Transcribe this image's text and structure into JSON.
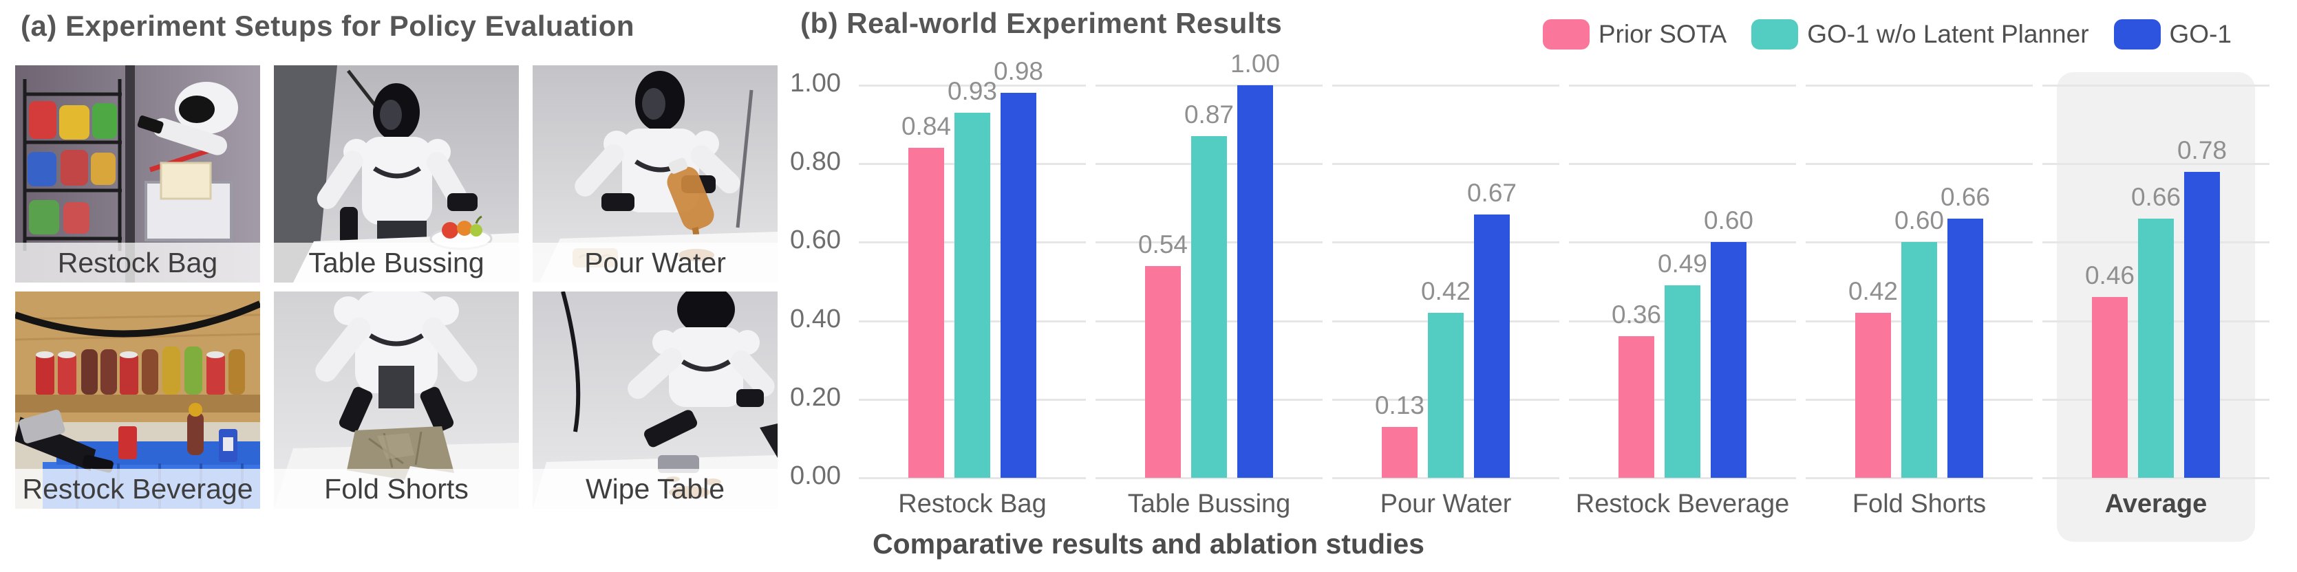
{
  "panel_a": {
    "title": "(a) Experiment Setups for Policy Evaluation",
    "setups": [
      {
        "label": "Restock Bag",
        "scene": "restock-bag"
      },
      {
        "label": "Table Bussing",
        "scene": "table-bussing"
      },
      {
        "label": "Pour Water",
        "scene": "pour-water"
      },
      {
        "label": "Restock Beverage",
        "scene": "restock-beverage"
      },
      {
        "label": "Fold Shorts",
        "scene": "fold-shorts"
      },
      {
        "label": "Wipe Table",
        "scene": "wipe-table"
      }
    ]
  },
  "panel_b": {
    "title": "(b) Real-world Experiment Results",
    "caption": "Comparative results and ablation studies"
  },
  "chart_data": {
    "type": "bar",
    "title": "(b) Real-world Experiment Results",
    "categories": [
      "Restock Bag",
      "Table Bussing",
      "Pour Water",
      "Restock Beverage",
      "Fold Shorts",
      "Average"
    ],
    "series": [
      {
        "name": "Prior SOTA",
        "color": "#FA769B",
        "values": [
          0.84,
          0.54,
          0.13,
          0.36,
          0.42,
          0.46
        ]
      },
      {
        "name": "GO-1 w/o Latent Planner",
        "color": "#53CDC1",
        "values": [
          0.93,
          0.87,
          0.42,
          0.49,
          0.6,
          0.66
        ]
      },
      {
        "name": "GO-1",
        "color": "#2D54DF",
        "values": [
          0.98,
          1.0,
          0.67,
          0.6,
          0.66,
          0.78
        ]
      }
    ],
    "ylim": [
      0,
      1.0
    ],
    "yticks": [
      "0.00",
      "0.20",
      "0.40",
      "0.60",
      "0.80",
      "1.00"
    ],
    "grid": true,
    "legend_position": "top-right",
    "highlight_category": "Average",
    "value_labels": true,
    "xlabel": "",
    "ylabel": ""
  }
}
